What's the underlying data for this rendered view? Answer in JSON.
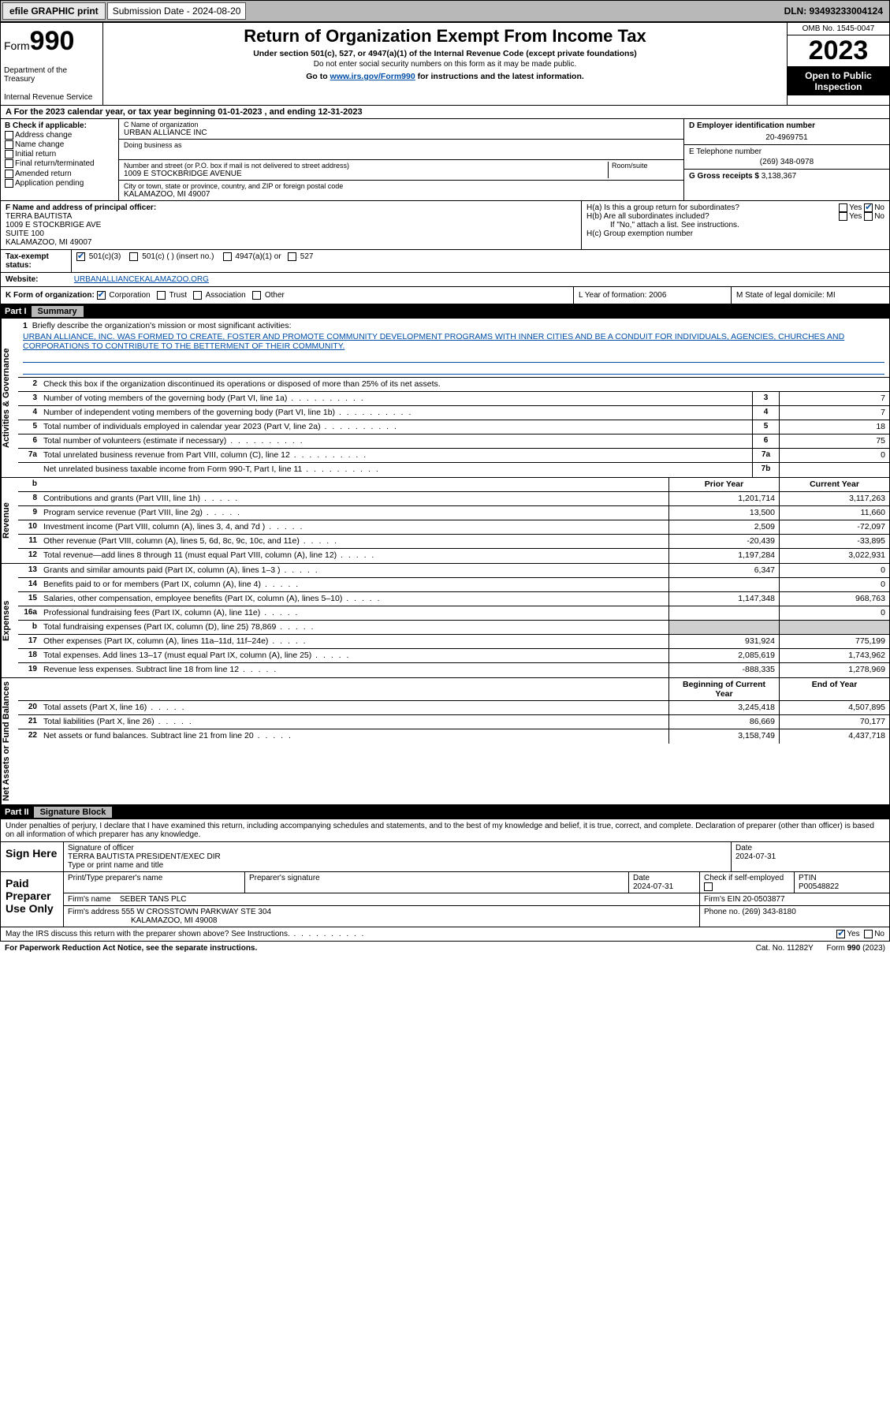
{
  "topbar": {
    "efile": "efile GRAPHIC print",
    "sub_label": "Submission Date - 2024-08-20",
    "dln": "DLN: 93493233004124"
  },
  "header": {
    "form_prefix": "Form",
    "form_number": "990",
    "dept": "Department of the Treasury",
    "irs": "Internal Revenue Service",
    "title": "Return of Organization Exempt From Income Tax",
    "sub1": "Under section 501(c), 527, or 4947(a)(1) of the Internal Revenue Code (except private foundations)",
    "sub2": "Do not enter social security numbers on this form as it may be made public.",
    "link_pre": "Go to ",
    "link_url": "www.irs.gov/Form990",
    "link_post": " for instructions and the latest information.",
    "omb": "OMB No. 1545-0047",
    "year": "2023",
    "open": "Open to Public Inspection"
  },
  "rowA": "A For the 2023 calendar year, or tax year beginning 01-01-2023   , and ending 12-31-2023",
  "B": {
    "title": "B Check if applicable:",
    "items": [
      "Address change",
      "Name change",
      "Initial return",
      "Final return/terminated",
      "Amended return",
      "Application pending"
    ]
  },
  "C": {
    "name_lbl": "C Name of organization",
    "name": "URBAN ALLIANCE INC",
    "dba_lbl": "Doing business as",
    "addr_lbl": "Number and street (or P.O. box if mail is not delivered to street address)",
    "room_lbl": "Room/suite",
    "addr": "1009 E STOCKBRIDGE AVENUE",
    "city_lbl": "City or town, state or province, country, and ZIP or foreign postal code",
    "city": "KALAMAZOO, MI  49007"
  },
  "D": {
    "ein_lbl": "D Employer identification number",
    "ein": "20-4969751",
    "tel_lbl": "E Telephone number",
    "tel": "(269) 348-0978",
    "gross_lbl": "G Gross receipts $",
    "gross": "3,138,367"
  },
  "F": {
    "lbl": "F Name and address of principal officer:",
    "name": "TERRA BAUTISTA",
    "addr1": "1009 E STOCKBRIGE AVE",
    "addr2": "SUITE 100",
    "addr3": "KALAMAZOO, MI  49007"
  },
  "H": {
    "a": "H(a)  Is this a group return for subordinates?",
    "b": "H(b)  Are all subordinates included?",
    "bnote": "If \"No,\" attach a list. See instructions.",
    "c": "H(c)  Group exemption number"
  },
  "I": {
    "lbl": "Tax-exempt status:",
    "opts": [
      "501(c)(3)",
      "501(c) (  ) (insert no.)",
      "4947(a)(1) or",
      "527"
    ]
  },
  "J": {
    "lbl": "Website:",
    "val": "URBANALLIANCEKALAMAZOO.ORG"
  },
  "K": {
    "lbl": "K Form of organization:",
    "opts": [
      "Corporation",
      "Trust",
      "Association",
      "Other"
    ]
  },
  "L": "L Year of formation: 2006",
  "M": "M State of legal domicile: MI",
  "part1": {
    "num": "Part I",
    "title": "Summary"
  },
  "mission": {
    "num": "1",
    "lbl": "Briefly describe the organization's mission or most significant activities:",
    "txt": "URBAN ALLIANCE, INC. WAS FORMED TO CREATE, FOSTER AND PROMOTE COMMUNITY DEVELOPMENT PROGRAMS WITH INNER CITIES AND BE A CONDUIT FOR INDIVIDUALS, AGENCIES, CHURCHES AND CORPORATIONS TO CONTRIBUTE TO THE BETTERMENT OF THEIR COMMUNITY."
  },
  "gov": {
    "l2": "Check this box        if the organization discontinued its operations or disposed of more than 25% of its net assets.",
    "rows": [
      {
        "n": "3",
        "t": "Number of voting members of the governing body (Part VI, line 1a)",
        "b": "3",
        "v": "7"
      },
      {
        "n": "4",
        "t": "Number of independent voting members of the governing body (Part VI, line 1b)",
        "b": "4",
        "v": "7"
      },
      {
        "n": "5",
        "t": "Total number of individuals employed in calendar year 2023 (Part V, line 2a)",
        "b": "5",
        "v": "18"
      },
      {
        "n": "6",
        "t": "Total number of volunteers (estimate if necessary)",
        "b": "6",
        "v": "75"
      },
      {
        "n": "7a",
        "t": "Total unrelated business revenue from Part VIII, column (C), line 12",
        "b": "7a",
        "v": "0"
      },
      {
        "n": "",
        "t": "Net unrelated business taxable income from Form 990-T, Part I, line 11",
        "b": "7b",
        "v": ""
      }
    ]
  },
  "rev": {
    "hdr_prior": "Prior Year",
    "hdr_curr": "Current Year",
    "rows": [
      {
        "n": "8",
        "t": "Contributions and grants (Part VIII, line 1h)",
        "p": "1,201,714",
        "c": "3,117,263"
      },
      {
        "n": "9",
        "t": "Program service revenue (Part VIII, line 2g)",
        "p": "13,500",
        "c": "11,660"
      },
      {
        "n": "10",
        "t": "Investment income (Part VIII, column (A), lines 3, 4, and 7d )",
        "p": "2,509",
        "c": "-72,097"
      },
      {
        "n": "11",
        "t": "Other revenue (Part VIII, column (A), lines 5, 6d, 8c, 9c, 10c, and 11e)",
        "p": "-20,439",
        "c": "-33,895"
      },
      {
        "n": "12",
        "t": "Total revenue—add lines 8 through 11 (must equal Part VIII, column (A), line 12)",
        "p": "1,197,284",
        "c": "3,022,931"
      }
    ]
  },
  "exp": {
    "rows": [
      {
        "n": "13",
        "t": "Grants and similar amounts paid (Part IX, column (A), lines 1–3 )",
        "p": "6,347",
        "c": "0"
      },
      {
        "n": "14",
        "t": "Benefits paid to or for members (Part IX, column (A), line 4)",
        "p": "",
        "c": "0"
      },
      {
        "n": "15",
        "t": "Salaries, other compensation, employee benefits (Part IX, column (A), lines 5–10)",
        "p": "1,147,348",
        "c": "968,763"
      },
      {
        "n": "16a",
        "t": "Professional fundraising fees (Part IX, column (A), line 11e)",
        "p": "",
        "c": "0"
      },
      {
        "n": "b",
        "t": "Total fundraising expenses (Part IX, column (D), line 25) 78,869",
        "p": "SHADE",
        "c": "SHADE"
      },
      {
        "n": "17",
        "t": "Other expenses (Part IX, column (A), lines 11a–11d, 11f–24e)",
        "p": "931,924",
        "c": "775,199"
      },
      {
        "n": "18",
        "t": "Total expenses. Add lines 13–17 (must equal Part IX, column (A), line 25)",
        "p": "2,085,619",
        "c": "1,743,962"
      },
      {
        "n": "19",
        "t": "Revenue less expenses. Subtract line 18 from line 12",
        "p": "-888,335",
        "c": "1,278,969"
      }
    ]
  },
  "net": {
    "hdr_beg": "Beginning of Current Year",
    "hdr_end": "End of Year",
    "rows": [
      {
        "n": "20",
        "t": "Total assets (Part X, line 16)",
        "p": "3,245,418",
        "c": "4,507,895"
      },
      {
        "n": "21",
        "t": "Total liabilities (Part X, line 26)",
        "p": "86,669",
        "c": "70,177"
      },
      {
        "n": "22",
        "t": "Net assets or fund balances. Subtract line 21 from line 20",
        "p": "3,158,749",
        "c": "4,437,718"
      }
    ]
  },
  "part2": {
    "num": "Part II",
    "title": "Signature Block"
  },
  "sig": {
    "perjury": "Under penalties of perjury, I declare that I have examined this return, including accompanying schedules and statements, and to the best of my knowledge and belief, it is true, correct, and complete. Declaration of preparer (other than officer) is based on all information of which preparer has any knowledge.",
    "sign_here": "Sign Here",
    "sig_off": "Signature of officer",
    "sig_name": "TERRA BAUTISTA  PRESIDENT/EXEC DIR",
    "sig_type": "Type or print name and title",
    "date_lbl": "Date",
    "date": "2024-07-31",
    "paid": "Paid Preparer Use Only",
    "prep_name_lbl": "Print/Type preparer's name",
    "prep_sig_lbl": "Preparer's signature",
    "prep_date": "2024-07-31",
    "self_emp": "Check          if self-employed",
    "ptin_lbl": "PTIN",
    "ptin": "P00548822",
    "firm_name_lbl": "Firm's name",
    "firm_name": "SEBER TANS PLC",
    "firm_ein_lbl": "Firm's EIN",
    "firm_ein": "20-0503877",
    "firm_addr_lbl": "Firm's address",
    "firm_addr1": "555 W CROSSTOWN PARKWAY STE 304",
    "firm_addr2": "KALAMAZOO, MI  49008",
    "phone_lbl": "Phone no.",
    "phone": "(269) 343-8180"
  },
  "foot": {
    "discuss": "May the IRS discuss this return with the preparer shown above? See Instructions.",
    "paperwork": "For Paperwork Reduction Act Notice, see the separate instructions.",
    "cat": "Cat. No. 11282Y",
    "form": "Form 990 (2023)"
  },
  "sideLabels": {
    "gov": "Activities & Governance",
    "rev": "Revenue",
    "exp": "Expenses",
    "net": "Net Assets or Fund Balances"
  }
}
